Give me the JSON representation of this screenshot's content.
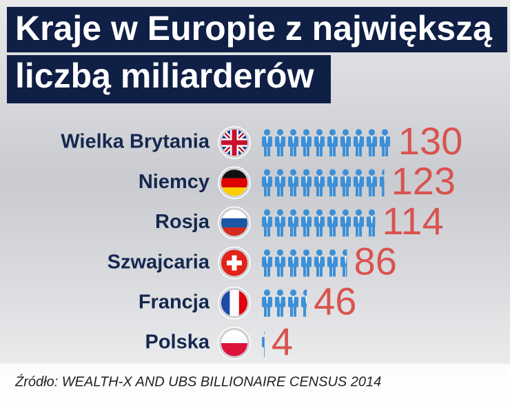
{
  "chart_data": {
    "type": "bar",
    "title": [
      "Kraje w Europie z największą",
      "liczbą miliarderów"
    ],
    "categories": [
      "Wielka Brytania",
      "Niemcy",
      "Rosja",
      "Szwajcaria",
      "Francja",
      "Polska"
    ],
    "values": [
      130,
      123,
      114,
      86,
      46,
      4
    ],
    "color": "#3d8fd6",
    "value_color": "#d9534f",
    "source": "Źródło: WEALTH-X AND UBS BILLIONAIRE CENSUS 2014"
  }
}
